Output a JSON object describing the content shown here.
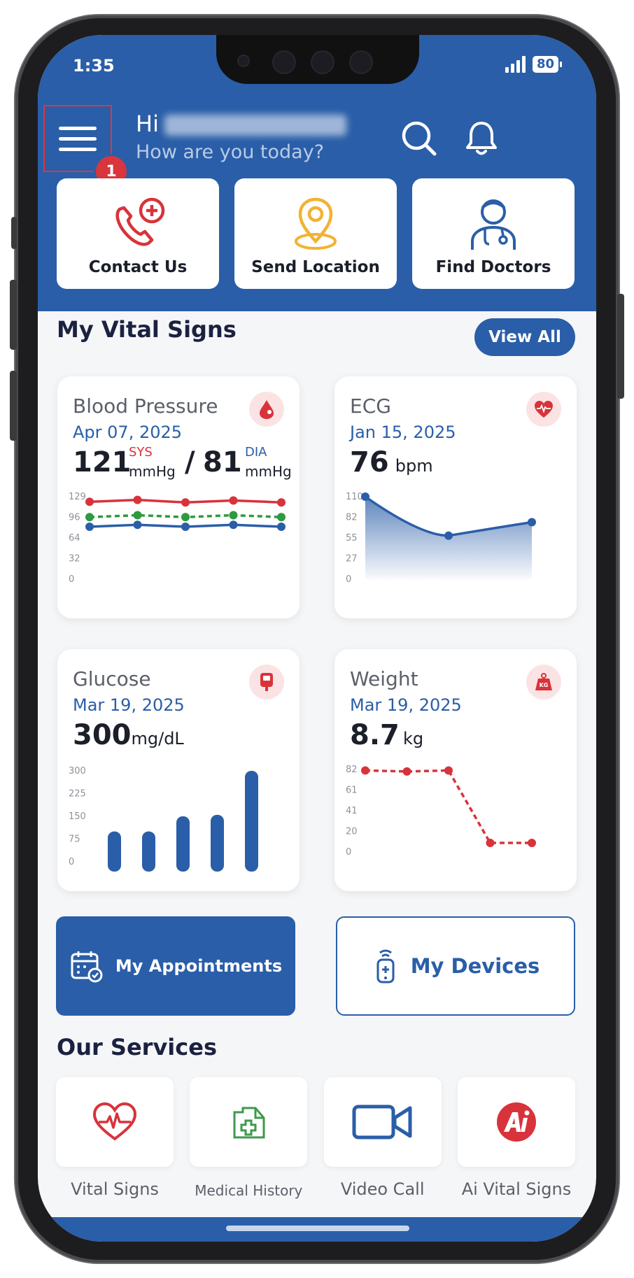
{
  "status": {
    "time": "1:35",
    "battery": "80"
  },
  "header": {
    "greeting": "Hi",
    "subtitle": "How are you today?",
    "step_badge": "1"
  },
  "quick_actions": [
    {
      "label": "Contact Us",
      "icon": "phone-plus-icon"
    },
    {
      "label": "Send Location",
      "icon": "location-pin-icon"
    },
    {
      "label": "Find Doctors",
      "icon": "doctor-icon"
    }
  ],
  "vitals": {
    "section_title": "My Vital Signs",
    "view_all": "View All",
    "blood_pressure": {
      "title": "Blood Pressure",
      "date": "Apr 07, 2025",
      "sys_value": "121",
      "sys_label": "SYS",
      "sys_unit": "mmHg",
      "separator": "/",
      "dia_value": "81",
      "dia_label": "DIA",
      "dia_unit": "mmHg",
      "icon": "blood-drop-icon"
    },
    "ecg": {
      "title": "ECG",
      "date": "Jan 15, 2025",
      "value": "76",
      "unit": "bpm",
      "icon": "heart-pulse-icon"
    },
    "glucose": {
      "title": "Glucose",
      "date": "Mar 19, 2025",
      "value": "300",
      "unit": "mg/dL",
      "icon": "glucometer-icon"
    },
    "weight": {
      "title": "Weight",
      "date": "Mar 19, 2025",
      "value": "8.7",
      "unit": "kg",
      "icon": "kg-weight-icon"
    }
  },
  "chart_data": [
    {
      "type": "line",
      "name": "blood_pressure",
      "yticks": [
        "129",
        "96",
        "64",
        "32",
        "0"
      ],
      "ylim": [
        0,
        129
      ],
      "series": [
        {
          "values": [
            121,
            124,
            120,
            123,
            120
          ],
          "color": "#d8333b",
          "style": "solid"
        },
        {
          "values": [
            97,
            100,
            97,
            100,
            97
          ],
          "color": "#2e9a3f",
          "style": "dashed"
        },
        {
          "values": [
            82,
            85,
            82,
            85,
            82
          ],
          "color": "#2a5ea8",
          "style": "solid"
        }
      ]
    },
    {
      "type": "area",
      "name": "ecg",
      "yticks": [
        "110",
        "82",
        "55",
        "27",
        "0"
      ],
      "ylim": [
        0,
        110
      ],
      "series": [
        {
          "values": [
            110,
            58,
            76
          ],
          "color": "#2a5ea8"
        }
      ]
    },
    {
      "type": "bar",
      "name": "glucose",
      "yticks": [
        "300",
        "225",
        "150",
        "75",
        "0"
      ],
      "ylim": [
        0,
        300
      ],
      "series": [
        {
          "values": [
            100,
            100,
            150,
            155,
            300
          ],
          "color": "#2a5ea8"
        }
      ]
    },
    {
      "type": "line",
      "name": "weight",
      "yticks": [
        "82",
        "61",
        "41",
        "20",
        "0"
      ],
      "ylim": [
        0,
        82
      ],
      "series": [
        {
          "values": [
            81,
            80,
            81,
            9,
            9
          ],
          "color": "#d8333b",
          "style": "dashed"
        }
      ]
    }
  ],
  "actions": {
    "appointments": "My Appointments",
    "devices": "My Devices"
  },
  "services": {
    "title": "Our Services",
    "items": [
      {
        "label": "Vital Signs",
        "icon": "heart-ecg-icon"
      },
      {
        "label": "Medical History",
        "icon": "medical-folder-icon"
      },
      {
        "label": "Video Call",
        "icon": "video-camera-icon"
      },
      {
        "label": "Ai Vital Signs",
        "icon": "ai-logo-icon"
      }
    ]
  }
}
